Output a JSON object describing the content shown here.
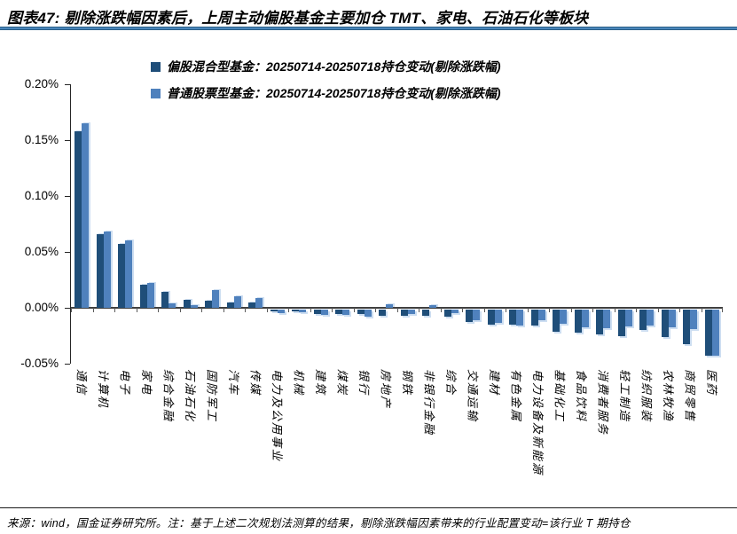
{
  "figure": {
    "title": "图表47: 剔除涨跌幅因素后，上周主动偏股基金主要加仓 TMT、家电、石油石化等板块",
    "source_note": "来源：wind，国金证券研究所。注：基于上述二次规划法测算的结果，剔除涨跌幅因素带来的行业配置变动=该行业 T 期持仓"
  },
  "colors": {
    "series_dark": "#1F4E79",
    "series_light": "#4F81BD",
    "title_rule": "#2E75B6",
    "axis": "#262626"
  },
  "chart_data": {
    "type": "bar",
    "title": "剔除涨跌幅因素后上周主动偏股基金持仓变动",
    "unit": "%",
    "grid": false,
    "legend_position": "top",
    "ylim": [
      -0.05,
      0.2
    ],
    "ytick_values": [
      0.2,
      0.15,
      0.1,
      0.05,
      0.0,
      -0.05
    ],
    "ytick_labels": [
      "0.20%",
      "0.15%",
      "0.10%",
      "0.05%",
      "0.00%",
      "-0.05%"
    ],
    "categories": [
      "通信",
      "计算机",
      "电子",
      "家电",
      "综合金融",
      "石油石化",
      "国防军工",
      "汽车",
      "传媒",
      "电力及公用事业",
      "机械",
      "建筑",
      "煤炭",
      "银行",
      "房地产",
      "钢铁",
      "非银行金融",
      "综合",
      "交通运输",
      "建材",
      "有色金属",
      "电力设备及新能源",
      "基础化工",
      "食品饮料",
      "消费者服务",
      "轻工制造",
      "纺织服装",
      "农林牧渔",
      "商贸零售",
      "医药"
    ],
    "series": [
      {
        "name": "偏股混合型基金：20250714-20250718持仓变动(剔除涨跌幅)",
        "color": "#1F4E79",
        "values": [
          0.158,
          0.066,
          0.057,
          0.021,
          0.014,
          0.007,
          0.006,
          0.005,
          0.0045,
          -0.002,
          -0.002,
          -0.004,
          -0.004,
          -0.0042,
          -0.0056,
          -0.0056,
          -0.0063,
          -0.0069,
          -0.0117,
          -0.0137,
          -0.014,
          -0.0143,
          -0.0201,
          -0.021,
          -0.0225,
          -0.024,
          -0.019,
          -0.025,
          -0.0315,
          -0.042
        ]
      },
      {
        "name": "普通股票型基金：20250714-20250718持仓变动(剔除涨跌幅)",
        "color": "#4F81BD",
        "values": [
          0.165,
          0.068,
          0.06,
          0.022,
          0.0042,
          0.0024,
          0.0156,
          0.0103,
          0.0087,
          -0.0032,
          -0.0027,
          -0.0048,
          -0.005,
          -0.0071,
          0.0034,
          -0.004,
          0.0024,
          -0.0037,
          -0.0103,
          -0.0125,
          -0.0148,
          -0.0103,
          -0.013,
          -0.016,
          -0.017,
          -0.0156,
          -0.0145,
          -0.016,
          -0.018,
          -0.042
        ]
      }
    ]
  }
}
